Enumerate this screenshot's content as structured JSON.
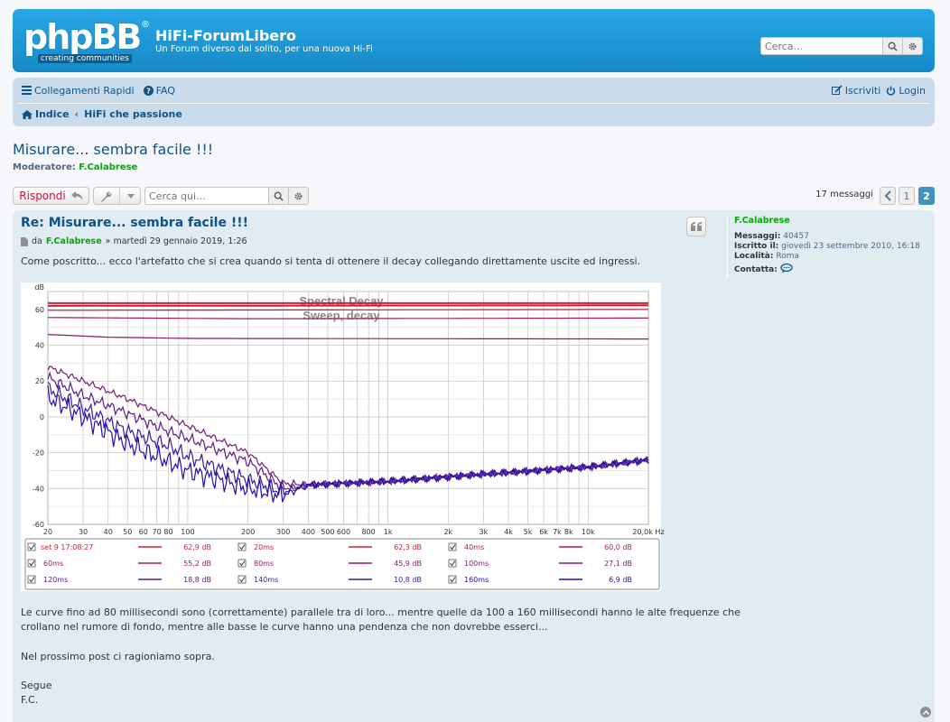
{
  "header": {
    "logo_text": "phpBB",
    "logo_reg": "®",
    "logo_tagline": "creating communities",
    "site_title": "HiFi-ForumLibero",
    "site_description": "Un Forum diverso dal solito, per una nuova Hi-Fi",
    "search_placeholder": "Cerca…",
    "search_icon": "search-icon",
    "advanced_icon": "gear-icon"
  },
  "navbar": {
    "quick_links": "Collegamenti Rapidi",
    "faq": "FAQ",
    "register": "Iscriviti",
    "login": "Login",
    "breadcrumb_home": "Indice",
    "breadcrumb_sep": "‹",
    "breadcrumb_forum": "HiFi che passione"
  },
  "topic": {
    "title": "Misurare... sembra facile !!!",
    "moderator_label": "Moderatore:",
    "moderator_name": "F.Calabrese"
  },
  "actionbar": {
    "reply_label": "Rispondi",
    "search_placeholder": "Cerca qui…",
    "message_count": "17 messaggi",
    "pages": [
      "1",
      "2"
    ],
    "current_page": "2"
  },
  "post": {
    "title": "Re: Misurare... sembra facile !!!",
    "by_label": "da",
    "author": "F.Calabrese",
    "date": "» martedì 29 gennaio 2019, 1:26",
    "intro": "Come poscritto... ecco l'artefatto che si crea quando si tenta di ottenere il decay collegando direttamente uscite ed ingressi.",
    "paragraph1_line1": "Le curve fino ad 80 millisecondi sono (correttamente) parallele tra di loro... mentre quelle da 100 a 160 millisecondi hanno le alte frequenze che",
    "paragraph1_line2": "crollano nel rumore di fondo, mentre alle basse le curve hanno una pendenza che non dovrebbe esserci...",
    "paragraph2": "Nel prossimo post ci ragioniamo sopra.",
    "sign1": "Segue",
    "sign2": "F.C."
  },
  "profile": {
    "name": "F.Calabrese",
    "posts_label": "Messaggi:",
    "posts_value": "40457",
    "joined_label": "Iscritto il:",
    "joined_value": "giovedì 23 settembre 2010, 16:18",
    "location_label": "Località:",
    "location_value": "Roma",
    "contact_label": "Contatta:"
  },
  "chart_data": {
    "type": "line",
    "title": "Spectral Decay",
    "subtitle": "Sweep, decay",
    "ylabel": "dB",
    "xlabel": "",
    "x_scale": "log",
    "xlim": [
      20,
      20000
    ],
    "ylim": [
      -60,
      70
    ],
    "grid": true,
    "legend_position": "bottom",
    "x_tick_labels": [
      "20",
      "30",
      "40",
      "50",
      "60",
      "70",
      "80",
      "100",
      "200",
      "300",
      "400",
      "500",
      "600",
      "800",
      "1k",
      "2k",
      "3k",
      "4k",
      "5k",
      "6k",
      "7k",
      "8k",
      "10k",
      "20,0k Hz"
    ],
    "x_tick_values": [
      20,
      30,
      40,
      50,
      60,
      70,
      80,
      100,
      200,
      300,
      400,
      500,
      600,
      800,
      1000,
      2000,
      3000,
      4000,
      5000,
      6000,
      7000,
      8000,
      10000,
      20000
    ],
    "y_tick_labels": [
      "60",
      "40",
      "20",
      "0",
      "-20",
      "-40",
      "-60"
    ],
    "y_tick_values": [
      60,
      40,
      20,
      0,
      -20,
      -40,
      -60
    ],
    "series": [
      {
        "name": "set 9 17:08:27",
        "level": "62,9 dB",
        "color": "#d42030",
        "points": [
          [
            20,
            63.5
          ],
          [
            20000,
            63.5
          ]
        ]
      },
      {
        "name": "20ms",
        "level": "62,3 dB",
        "color": "#c82038",
        "points": [
          [
            20,
            62
          ],
          [
            20000,
            62.3
          ]
        ]
      },
      {
        "name": "40ms",
        "level": "60,0 dB",
        "color": "#b01c48",
        "points": [
          [
            20,
            59.5
          ],
          [
            20000,
            60
          ]
        ]
      },
      {
        "name": "60ms",
        "level": "55,2 dB",
        "color": "#a01c58",
        "points": [
          [
            20,
            55.5
          ],
          [
            200,
            54.8
          ],
          [
            20000,
            55.2
          ]
        ]
      },
      {
        "name": "80ms",
        "level": "45,9 dB",
        "color": "#8c1c68",
        "points": [
          [
            20,
            46
          ],
          [
            40,
            44.5
          ],
          [
            100,
            43.8
          ],
          [
            20000,
            43.5
          ]
        ]
      },
      {
        "name": "100ms",
        "level": "27,1 dB",
        "color": "#7a1c78",
        "points": [
          [
            20,
            28
          ],
          [
            30,
            20
          ],
          [
            50,
            10
          ],
          [
            80,
            0
          ],
          [
            100,
            -5
          ],
          [
            200,
            -20
          ],
          [
            300,
            -37
          ],
          [
            400,
            -38
          ],
          [
            1000,
            -36
          ],
          [
            3000,
            -32
          ],
          [
            10000,
            -28
          ],
          [
            20000,
            -24
          ]
        ]
      },
      {
        "name": "120ms",
        "level": "18,8 dB",
        "color": "#5a1c8c",
        "points": [
          [
            20,
            22
          ],
          [
            30,
            12
          ],
          [
            50,
            2
          ],
          [
            80,
            -8
          ],
          [
            100,
            -12
          ],
          [
            200,
            -25
          ],
          [
            300,
            -40
          ],
          [
            400,
            -38
          ],
          [
            1000,
            -36
          ],
          [
            3000,
            -32
          ],
          [
            10000,
            -28
          ],
          [
            20000,
            -24
          ]
        ]
      },
      {
        "name": "140ms",
        "level": "10,8 dB",
        "color": "#3a1aa0",
        "points": [
          [
            20,
            16
          ],
          [
            30,
            5
          ],
          [
            50,
            -8
          ],
          [
            80,
            -16
          ],
          [
            100,
            -22
          ],
          [
            200,
            -35
          ],
          [
            300,
            -42
          ],
          [
            400,
            -38
          ],
          [
            1000,
            -36
          ],
          [
            3000,
            -32
          ],
          [
            10000,
            -28
          ],
          [
            20000,
            -24
          ]
        ]
      },
      {
        "name": "160ms",
        "level": "6,9 dB",
        "color": "#2010b0",
        "points": [
          [
            20,
            11
          ],
          [
            30,
            0
          ],
          [
            50,
            -15
          ],
          [
            80,
            -25
          ],
          [
            100,
            -30
          ],
          [
            200,
            -40
          ],
          [
            300,
            -44
          ],
          [
            400,
            -38
          ],
          [
            1000,
            -36
          ],
          [
            3000,
            -32
          ],
          [
            10000,
            -28
          ],
          [
            20000,
            -24
          ]
        ]
      }
    ]
  }
}
